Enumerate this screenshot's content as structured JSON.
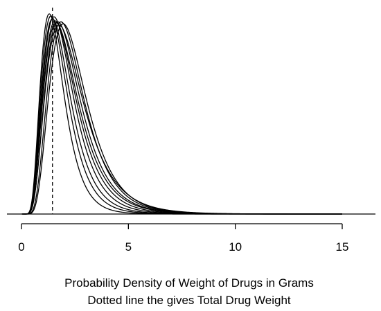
{
  "chart_data": {
    "type": "line",
    "title": "",
    "xlabel": "",
    "ylabel": "",
    "caption_lines": [
      "Probability Density of Weight of Drugs in Grams",
      "Dotted line the gives Total Drug Weight"
    ],
    "xlim": [
      0,
      15
    ],
    "x_ticks": [
      0,
      5,
      10,
      15
    ],
    "x_tick_labels": [
      "0",
      "5",
      "10",
      "15"
    ],
    "y_axis_shown": false,
    "grid": false,
    "legend": "none",
    "reference_line": {
      "x": 1.45,
      "style": "dashed"
    },
    "line_color": "#000000",
    "series_params": [
      {
        "mode": 1.3,
        "peak": 1.0,
        "sigma": 0.42,
        "start": 0.1
      },
      {
        "mode": 1.38,
        "peak": 0.99,
        "sigma": 0.44,
        "start": 0.08
      },
      {
        "mode": 1.45,
        "peak": 0.975,
        "sigma": 0.45,
        "start": 0.06
      },
      {
        "mode": 1.52,
        "peak": 0.985,
        "sigma": 0.46,
        "start": 0.05
      },
      {
        "mode": 1.58,
        "peak": 0.965,
        "sigma": 0.47,
        "start": 0.04
      },
      {
        "mode": 1.62,
        "peak": 0.955,
        "sigma": 0.48,
        "start": 0.035
      },
      {
        "mode": 1.7,
        "peak": 0.96,
        "sigma": 0.47,
        "start": 0.03
      },
      {
        "mode": 1.75,
        "peak": 0.945,
        "sigma": 0.49,
        "start": 0.025
      },
      {
        "mode": 1.85,
        "peak": 0.96,
        "sigma": 0.45,
        "start": 0.015
      },
      {
        "mode": 1.95,
        "peak": 0.95,
        "sigma": 0.44,
        "start": 0.01
      }
    ]
  }
}
